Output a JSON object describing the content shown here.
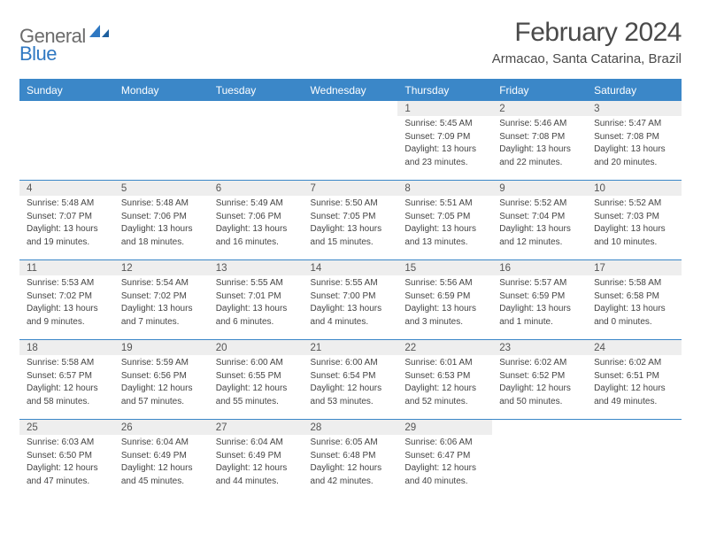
{
  "logo": {
    "general": "General",
    "blue": "Blue"
  },
  "title": "February 2024",
  "location": "Armacao, Santa Catarina, Brazil",
  "colors": {
    "header_bg": "#3b87c8",
    "header_text": "#ffffff",
    "date_bg": "#eeeeee",
    "date_text": "#555555",
    "info_text": "#444444",
    "divider": "#3b87c8",
    "logo_general": "#6b6b6b",
    "logo_blue": "#2f78c2"
  },
  "day_names": [
    "Sunday",
    "Monday",
    "Tuesday",
    "Wednesday",
    "Thursday",
    "Friday",
    "Saturday"
  ],
  "weeks": [
    [
      null,
      null,
      null,
      null,
      {
        "d": "1",
        "sr": "5:45 AM",
        "ss": "7:09 PM",
        "dl": "13 hours and 23 minutes."
      },
      {
        "d": "2",
        "sr": "5:46 AM",
        "ss": "7:08 PM",
        "dl": "13 hours and 22 minutes."
      },
      {
        "d": "3",
        "sr": "5:47 AM",
        "ss": "7:08 PM",
        "dl": "13 hours and 20 minutes."
      }
    ],
    [
      {
        "d": "4",
        "sr": "5:48 AM",
        "ss": "7:07 PM",
        "dl": "13 hours and 19 minutes."
      },
      {
        "d": "5",
        "sr": "5:48 AM",
        "ss": "7:06 PM",
        "dl": "13 hours and 18 minutes."
      },
      {
        "d": "6",
        "sr": "5:49 AM",
        "ss": "7:06 PM",
        "dl": "13 hours and 16 minutes."
      },
      {
        "d": "7",
        "sr": "5:50 AM",
        "ss": "7:05 PM",
        "dl": "13 hours and 15 minutes."
      },
      {
        "d": "8",
        "sr": "5:51 AM",
        "ss": "7:05 PM",
        "dl": "13 hours and 13 minutes."
      },
      {
        "d": "9",
        "sr": "5:52 AM",
        "ss": "7:04 PM",
        "dl": "13 hours and 12 minutes."
      },
      {
        "d": "10",
        "sr": "5:52 AM",
        "ss": "7:03 PM",
        "dl": "13 hours and 10 minutes."
      }
    ],
    [
      {
        "d": "11",
        "sr": "5:53 AM",
        "ss": "7:02 PM",
        "dl": "13 hours and 9 minutes."
      },
      {
        "d": "12",
        "sr": "5:54 AM",
        "ss": "7:02 PM",
        "dl": "13 hours and 7 minutes."
      },
      {
        "d": "13",
        "sr": "5:55 AM",
        "ss": "7:01 PM",
        "dl": "13 hours and 6 minutes."
      },
      {
        "d": "14",
        "sr": "5:55 AM",
        "ss": "7:00 PM",
        "dl": "13 hours and 4 minutes."
      },
      {
        "d": "15",
        "sr": "5:56 AM",
        "ss": "6:59 PM",
        "dl": "13 hours and 3 minutes."
      },
      {
        "d": "16",
        "sr": "5:57 AM",
        "ss": "6:59 PM",
        "dl": "13 hours and 1 minute."
      },
      {
        "d": "17",
        "sr": "5:58 AM",
        "ss": "6:58 PM",
        "dl": "13 hours and 0 minutes."
      }
    ],
    [
      {
        "d": "18",
        "sr": "5:58 AM",
        "ss": "6:57 PM",
        "dl": "12 hours and 58 minutes."
      },
      {
        "d": "19",
        "sr": "5:59 AM",
        "ss": "6:56 PM",
        "dl": "12 hours and 57 minutes."
      },
      {
        "d": "20",
        "sr": "6:00 AM",
        "ss": "6:55 PM",
        "dl": "12 hours and 55 minutes."
      },
      {
        "d": "21",
        "sr": "6:00 AM",
        "ss": "6:54 PM",
        "dl": "12 hours and 53 minutes."
      },
      {
        "d": "22",
        "sr": "6:01 AM",
        "ss": "6:53 PM",
        "dl": "12 hours and 52 minutes."
      },
      {
        "d": "23",
        "sr": "6:02 AM",
        "ss": "6:52 PM",
        "dl": "12 hours and 50 minutes."
      },
      {
        "d": "24",
        "sr": "6:02 AM",
        "ss": "6:51 PM",
        "dl": "12 hours and 49 minutes."
      }
    ],
    [
      {
        "d": "25",
        "sr": "6:03 AM",
        "ss": "6:50 PM",
        "dl": "12 hours and 47 minutes."
      },
      {
        "d": "26",
        "sr": "6:04 AM",
        "ss": "6:49 PM",
        "dl": "12 hours and 45 minutes."
      },
      {
        "d": "27",
        "sr": "6:04 AM",
        "ss": "6:49 PM",
        "dl": "12 hours and 44 minutes."
      },
      {
        "d": "28",
        "sr": "6:05 AM",
        "ss": "6:48 PM",
        "dl": "12 hours and 42 minutes."
      },
      {
        "d": "29",
        "sr": "6:06 AM",
        "ss": "6:47 PM",
        "dl": "12 hours and 40 minutes."
      },
      null,
      null
    ]
  ],
  "labels": {
    "sunrise": "Sunrise:",
    "sunset": "Sunset:",
    "daylight": "Daylight:"
  }
}
